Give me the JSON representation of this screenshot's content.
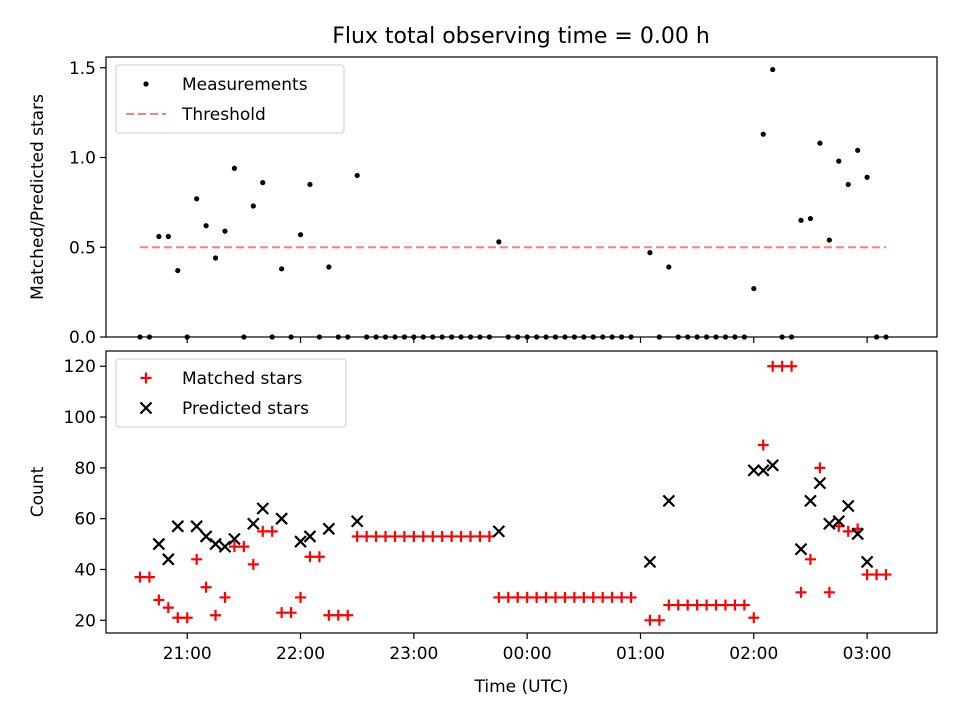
{
  "title": "Flux total observing time = 0.00 h",
  "chart_data": [
    {
      "type": "scatter",
      "ylabel": "Matched/Predicted stars",
      "xlabel": "",
      "x_unit": "time (UTC)",
      "xlim": [
        "20:17",
        "03:37"
      ],
      "ylim": [
        0,
        1.56
      ],
      "yticks": [
        "0.0",
        "0.5",
        "1.0",
        "1.5"
      ],
      "grid": false,
      "legend_position": "top-left",
      "series": [
        {
          "name": "Measurements",
          "style": "dot",
          "color": "#000000",
          "points": [
            {
              "x": "20:35",
              "y": 0
            },
            {
              "x": "20:40",
              "y": 0
            },
            {
              "x": "20:45",
              "y": 0.56
            },
            {
              "x": "20:50",
              "y": 0.56
            },
            {
              "x": "20:55",
              "y": 0.37
            },
            {
              "x": "21:00",
              "y": 0
            },
            {
              "x": "21:05",
              "y": 0.77
            },
            {
              "x": "21:10",
              "y": 0.62
            },
            {
              "x": "21:15",
              "y": 0.44
            },
            {
              "x": "21:20",
              "y": 0.59
            },
            {
              "x": "21:25",
              "y": 0.94
            },
            {
              "x": "21:30",
              "y": 0
            },
            {
              "x": "21:35",
              "y": 0.73
            },
            {
              "x": "21:40",
              "y": 0.86
            },
            {
              "x": "21:45",
              "y": 0
            },
            {
              "x": "21:50",
              "y": 0.38
            },
            {
              "x": "21:55",
              "y": 0
            },
            {
              "x": "22:00",
              "y": 0.57
            },
            {
              "x": "22:05",
              "y": 0.85
            },
            {
              "x": "22:10",
              "y": 0
            },
            {
              "x": "22:15",
              "y": 0.39
            },
            {
              "x": "22:20",
              "y": 0
            },
            {
              "x": "22:25",
              "y": 0
            },
            {
              "x": "22:30",
              "y": 0.9
            },
            {
              "x": "22:35",
              "y": 0
            },
            {
              "x": "22:40",
              "y": 0
            },
            {
              "x": "22:45",
              "y": 0
            },
            {
              "x": "22:50",
              "y": 0
            },
            {
              "x": "22:55",
              "y": 0
            },
            {
              "x": "23:00",
              "y": 0
            },
            {
              "x": "23:05",
              "y": 0
            },
            {
              "x": "23:10",
              "y": 0
            },
            {
              "x": "23:15",
              "y": 0
            },
            {
              "x": "23:20",
              "y": 0
            },
            {
              "x": "23:25",
              "y": 0
            },
            {
              "x": "23:30",
              "y": 0
            },
            {
              "x": "23:35",
              "y": 0
            },
            {
              "x": "23:40",
              "y": 0
            },
            {
              "x": "23:45",
              "y": 0.53
            },
            {
              "x": "23:50",
              "y": 0
            },
            {
              "x": "23:55",
              "y": 0
            },
            {
              "x": "00:00",
              "y": 0
            },
            {
              "x": "00:05",
              "y": 0
            },
            {
              "x": "00:10",
              "y": 0
            },
            {
              "x": "00:15",
              "y": 0
            },
            {
              "x": "00:20",
              "y": 0
            },
            {
              "x": "00:25",
              "y": 0
            },
            {
              "x": "00:30",
              "y": 0
            },
            {
              "x": "00:35",
              "y": 0
            },
            {
              "x": "00:40",
              "y": 0
            },
            {
              "x": "00:45",
              "y": 0
            },
            {
              "x": "00:50",
              "y": 0
            },
            {
              "x": "00:55",
              "y": 0
            },
            {
              "x": "01:05",
              "y": 0.47
            },
            {
              "x": "01:10",
              "y": 0
            },
            {
              "x": "01:15",
              "y": 0.39
            },
            {
              "x": "01:20",
              "y": 0
            },
            {
              "x": "01:25",
              "y": 0
            },
            {
              "x": "01:30",
              "y": 0
            },
            {
              "x": "01:35",
              "y": 0
            },
            {
              "x": "01:40",
              "y": 0
            },
            {
              "x": "01:45",
              "y": 0
            },
            {
              "x": "01:50",
              "y": 0
            },
            {
              "x": "01:55",
              "y": 0
            },
            {
              "x": "02:00",
              "y": 0.27
            },
            {
              "x": "02:05",
              "y": 1.13
            },
            {
              "x": "02:10",
              "y": 1.49
            },
            {
              "x": "02:15",
              "y": 0
            },
            {
              "x": "02:20",
              "y": 0
            },
            {
              "x": "02:25",
              "y": 0.65
            },
            {
              "x": "02:30",
              "y": 0.66
            },
            {
              "x": "02:35",
              "y": 1.08
            },
            {
              "x": "02:40",
              "y": 0.54
            },
            {
              "x": "02:45",
              "y": 0.98
            },
            {
              "x": "02:50",
              "y": 0.85
            },
            {
              "x": "02:55",
              "y": 1.04
            },
            {
              "x": "03:00",
              "y": 0.89
            },
            {
              "x": "03:05",
              "y": 0
            },
            {
              "x": "03:10",
              "y": 0
            }
          ]
        },
        {
          "name": "Threshold",
          "style": "dashed-line",
          "color": "#ff7f7f",
          "points": [
            {
              "x": "20:35",
              "y": 0.5
            },
            {
              "x": "03:10",
              "y": 0.5
            }
          ]
        }
      ]
    },
    {
      "type": "scatter",
      "ylabel": "Count",
      "xlabel": "Time (UTC)",
      "xticks": [
        "21:00",
        "22:00",
        "23:00",
        "00:00",
        "01:00",
        "02:00",
        "03:00"
      ],
      "xlim": [
        "20:17",
        "03:37"
      ],
      "ylim": [
        15,
        126
      ],
      "yticks": [
        "20",
        "40",
        "60",
        "80",
        "100",
        "120"
      ],
      "grid": false,
      "legend_position": "top-left",
      "series": [
        {
          "name": "Matched stars",
          "style": "plus",
          "color": "#ff0000",
          "points": [
            {
              "x": "20:35",
              "y": 37
            },
            {
              "x": "20:40",
              "y": 37
            },
            {
              "x": "20:45",
              "y": 28
            },
            {
              "x": "20:50",
              "y": 25
            },
            {
              "x": "20:55",
              "y": 21
            },
            {
              "x": "21:00",
              "y": 21
            },
            {
              "x": "21:05",
              "y": 44
            },
            {
              "x": "21:10",
              "y": 33
            },
            {
              "x": "21:15",
              "y": 22
            },
            {
              "x": "21:20",
              "y": 29
            },
            {
              "x": "21:25",
              "y": 49
            },
            {
              "x": "21:30",
              "y": 49
            },
            {
              "x": "21:35",
              "y": 42
            },
            {
              "x": "21:40",
              "y": 55
            },
            {
              "x": "21:45",
              "y": 55
            },
            {
              "x": "21:50",
              "y": 23
            },
            {
              "x": "21:55",
              "y": 23
            },
            {
              "x": "22:00",
              "y": 29
            },
            {
              "x": "22:05",
              "y": 45
            },
            {
              "x": "22:10",
              "y": 45
            },
            {
              "x": "22:15",
              "y": 22
            },
            {
              "x": "22:20",
              "y": 22
            },
            {
              "x": "22:25",
              "y": 22
            },
            {
              "x": "22:30",
              "y": 53
            },
            {
              "x": "22:35",
              "y": 53
            },
            {
              "x": "22:40",
              "y": 53
            },
            {
              "x": "22:45",
              "y": 53
            },
            {
              "x": "22:50",
              "y": 53
            },
            {
              "x": "22:55",
              "y": 53
            },
            {
              "x": "23:00",
              "y": 53
            },
            {
              "x": "23:05",
              "y": 53
            },
            {
              "x": "23:10",
              "y": 53
            },
            {
              "x": "23:15",
              "y": 53
            },
            {
              "x": "23:20",
              "y": 53
            },
            {
              "x": "23:25",
              "y": 53
            },
            {
              "x": "23:30",
              "y": 53
            },
            {
              "x": "23:35",
              "y": 53
            },
            {
              "x": "23:40",
              "y": 53
            },
            {
              "x": "23:45",
              "y": 29
            },
            {
              "x": "23:50",
              "y": 29
            },
            {
              "x": "23:55",
              "y": 29
            },
            {
              "x": "00:00",
              "y": 29
            },
            {
              "x": "00:05",
              "y": 29
            },
            {
              "x": "00:10",
              "y": 29
            },
            {
              "x": "00:15",
              "y": 29
            },
            {
              "x": "00:20",
              "y": 29
            },
            {
              "x": "00:25",
              "y": 29
            },
            {
              "x": "00:30",
              "y": 29
            },
            {
              "x": "00:35",
              "y": 29
            },
            {
              "x": "00:40",
              "y": 29
            },
            {
              "x": "00:45",
              "y": 29
            },
            {
              "x": "00:50",
              "y": 29
            },
            {
              "x": "00:55",
              "y": 29
            },
            {
              "x": "01:05",
              "y": 20
            },
            {
              "x": "01:10",
              "y": 20
            },
            {
              "x": "01:15",
              "y": 26
            },
            {
              "x": "01:20",
              "y": 26
            },
            {
              "x": "01:25",
              "y": 26
            },
            {
              "x": "01:30",
              "y": 26
            },
            {
              "x": "01:35",
              "y": 26
            },
            {
              "x": "01:40",
              "y": 26
            },
            {
              "x": "01:45",
              "y": 26
            },
            {
              "x": "01:50",
              "y": 26
            },
            {
              "x": "01:55",
              "y": 26
            },
            {
              "x": "02:00",
              "y": 21
            },
            {
              "x": "02:05",
              "y": 89
            },
            {
              "x": "02:10",
              "y": 120
            },
            {
              "x": "02:15",
              "y": 120
            },
            {
              "x": "02:20",
              "y": 120
            },
            {
              "x": "02:25",
              "y": 31
            },
            {
              "x": "02:30",
              "y": 44
            },
            {
              "x": "02:35",
              "y": 80
            },
            {
              "x": "02:40",
              "y": 31
            },
            {
              "x": "02:45",
              "y": 57
            },
            {
              "x": "02:50",
              "y": 55
            },
            {
              "x": "02:55",
              "y": 56
            },
            {
              "x": "03:00",
              "y": 38
            },
            {
              "x": "03:05",
              "y": 38
            },
            {
              "x": "03:10",
              "y": 38
            }
          ]
        },
        {
          "name": "Predicted stars",
          "style": "x",
          "color": "#000000",
          "points": [
            {
              "x": "20:45",
              "y": 50
            },
            {
              "x": "20:50",
              "y": 44
            },
            {
              "x": "20:55",
              "y": 57
            },
            {
              "x": "21:05",
              "y": 57
            },
            {
              "x": "21:10",
              "y": 53
            },
            {
              "x": "21:15",
              "y": 50
            },
            {
              "x": "21:20",
              "y": 49
            },
            {
              "x": "21:25",
              "y": 52
            },
            {
              "x": "21:35",
              "y": 58
            },
            {
              "x": "21:40",
              "y": 64
            },
            {
              "x": "21:50",
              "y": 60
            },
            {
              "x": "22:00",
              "y": 51
            },
            {
              "x": "22:05",
              "y": 53
            },
            {
              "x": "22:15",
              "y": 56
            },
            {
              "x": "22:30",
              "y": 59
            },
            {
              "x": "23:45",
              "y": 55
            },
            {
              "x": "01:05",
              "y": 43
            },
            {
              "x": "01:15",
              "y": 67
            },
            {
              "x": "02:00",
              "y": 79
            },
            {
              "x": "02:05",
              "y": 79
            },
            {
              "x": "02:10",
              "y": 81
            },
            {
              "x": "02:25",
              "y": 48
            },
            {
              "x": "02:30",
              "y": 67
            },
            {
              "x": "02:35",
              "y": 74
            },
            {
              "x": "02:40",
              "y": 58
            },
            {
              "x": "02:45",
              "y": 59
            },
            {
              "x": "02:50",
              "y": 65
            },
            {
              "x": "02:55",
              "y": 54
            },
            {
              "x": "03:00",
              "y": 43
            }
          ]
        }
      ]
    }
  ]
}
